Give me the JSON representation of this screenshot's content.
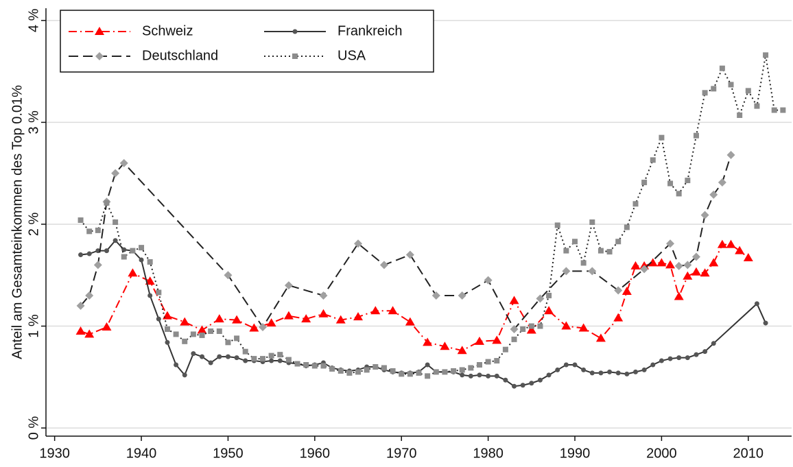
{
  "chart_data": {
    "type": "line",
    "y_label": "Anteil am Gesamteinkommen des Top 0.01%",
    "xlim": [
      1929,
      2015
    ],
    "xticks": [
      1930,
      1940,
      1950,
      1960,
      1970,
      1980,
      1990,
      2000,
      2010
    ],
    "ylim": [
      -0.08,
      4.12
    ],
    "yticks": [
      {
        "value": 0,
        "label": "0 %"
      },
      {
        "value": 1,
        "label": "1 %"
      },
      {
        "value": 2,
        "label": "2 %"
      },
      {
        "value": 3,
        "label": "3 %"
      },
      {
        "value": 4,
        "label": "4 %"
      }
    ],
    "grid": true,
    "legend_position": "top-left",
    "series": [
      {
        "name": "Schweiz",
        "color": "#ff0000",
        "marker_color": "#ff0000",
        "marker": "triangle",
        "line_style": "dashdot",
        "x": [
          1933,
          1934,
          1936,
          1939,
          1941,
          1943,
          1945,
          1947,
          1949,
          1951,
          1953,
          1955,
          1957,
          1959,
          1961,
          1963,
          1965,
          1967,
          1969,
          1971,
          1973,
          1975,
          1977,
          1979,
          1981,
          1983,
          1985,
          1987,
          1989,
          1991,
          1993,
          1995,
          1996,
          1997,
          1998,
          1999,
          2000,
          2001,
          2002,
          2003,
          2004,
          2005,
          2006,
          2007,
          2008,
          2009,
          2010
        ],
        "values": [
          0.95,
          0.92,
          0.99,
          1.52,
          1.44,
          1.1,
          1.04,
          0.96,
          1.07,
          1.06,
          0.98,
          1.03,
          1.1,
          1.07,
          1.12,
          1.06,
          1.09,
          1.15,
          1.15,
          1.04,
          0.84,
          0.8,
          0.76,
          0.85,
          0.86,
          1.25,
          0.96,
          1.15,
          1.0,
          0.98,
          0.88,
          1.08,
          1.34,
          1.59,
          1.59,
          1.62,
          1.62,
          1.6,
          1.29,
          1.49,
          1.53,
          1.52,
          1.62,
          1.8,
          1.8,
          1.74,
          1.67
        ]
      },
      {
        "name": "Frankreich",
        "color": "#333333",
        "marker_color": "#555555",
        "marker": "circle",
        "line_style": "solid",
        "x": [
          1933,
          1934,
          1935,
          1936,
          1937,
          1938,
          1939,
          1940,
          1941,
          1942,
          1943,
          1944,
          1945,
          1946,
          1947,
          1948,
          1949,
          1950,
          1951,
          1952,
          1953,
          1954,
          1955,
          1956,
          1957,
          1958,
          1959,
          1960,
          1961,
          1962,
          1963,
          1964,
          1965,
          1966,
          1967,
          1968,
          1969,
          1970,
          1971,
          1972,
          1973,
          1974,
          1975,
          1976,
          1977,
          1978,
          1979,
          1980,
          1981,
          1982,
          1983,
          1984,
          1985,
          1986,
          1987,
          1988,
          1989,
          1990,
          1991,
          1992,
          1993,
          1994,
          1995,
          1996,
          1997,
          1998,
          1999,
          2000,
          2001,
          2002,
          2003,
          2004,
          2005,
          2006,
          2011,
          2012
        ],
        "values": [
          1.7,
          1.71,
          1.74,
          1.74,
          1.84,
          1.75,
          1.74,
          1.65,
          1.3,
          1.07,
          0.84,
          0.62,
          0.52,
          0.73,
          0.7,
          0.64,
          0.7,
          0.7,
          0.69,
          0.66,
          0.66,
          0.65,
          0.66,
          0.66,
          0.64,
          0.63,
          0.61,
          0.62,
          0.64,
          0.59,
          0.57,
          0.56,
          0.57,
          0.6,
          0.6,
          0.57,
          0.55,
          0.54,
          0.54,
          0.55,
          0.62,
          0.55,
          0.55,
          0.55,
          0.52,
          0.51,
          0.52,
          0.51,
          0.51,
          0.47,
          0.41,
          0.42,
          0.44,
          0.47,
          0.52,
          0.57,
          0.62,
          0.62,
          0.57,
          0.54,
          0.54,
          0.55,
          0.54,
          0.53,
          0.55,
          0.57,
          0.62,
          0.66,
          0.68,
          0.69,
          0.69,
          0.72,
          0.75,
          0.83,
          1.22,
          1.03
        ]
      },
      {
        "name": "Deutschland",
        "color": "#222222",
        "marker_color": "#a0a0a0",
        "marker": "diamond",
        "line_style": "dashed",
        "x": [
          1933,
          1934,
          1935,
          1936,
          1937,
          1938,
          1950,
          1954,
          1957,
          1961,
          1965,
          1968,
          1971,
          1974,
          1977,
          1980,
          1983,
          1986,
          1989,
          1992,
          1995,
          1998,
          2001,
          2002,
          2003,
          2004,
          2005,
          2006,
          2007,
          2008
        ],
        "values": [
          1.2,
          1.3,
          1.6,
          2.22,
          2.5,
          2.6,
          1.5,
          0.99,
          1.4,
          1.3,
          1.81,
          1.6,
          1.7,
          1.3,
          1.3,
          1.45,
          0.97,
          1.27,
          1.54,
          1.54,
          1.35,
          1.56,
          1.81,
          1.59,
          1.6,
          1.68,
          2.09,
          2.29,
          2.41,
          2.68
        ]
      },
      {
        "name": "USA",
        "color": "#222222",
        "marker_color": "#8c8c8c",
        "marker": "square",
        "line_style": "dotted",
        "x": [
          1933,
          1934,
          1935,
          1936,
          1937,
          1938,
          1939,
          1940,
          1941,
          1942,
          1943,
          1944,
          1945,
          1946,
          1947,
          1948,
          1949,
          1950,
          1951,
          1952,
          1953,
          1954,
          1955,
          1956,
          1957,
          1958,
          1959,
          1960,
          1961,
          1962,
          1963,
          1964,
          1965,
          1966,
          1967,
          1968,
          1969,
          1970,
          1971,
          1972,
          1973,
          1974,
          1975,
          1976,
          1977,
          1978,
          1979,
          1980,
          1981,
          1982,
          1983,
          1984,
          1985,
          1986,
          1987,
          1988,
          1989,
          1990,
          1991,
          1992,
          1993,
          1994,
          1995,
          1996,
          1997,
          1998,
          1999,
          2000,
          2001,
          2002,
          2003,
          2004,
          2005,
          2006,
          2007,
          2008,
          2009,
          2010,
          2011,
          2012,
          2013,
          2014
        ],
        "values": [
          2.04,
          1.93,
          1.94,
          2.21,
          2.02,
          1.68,
          1.74,
          1.77,
          1.63,
          1.33,
          0.97,
          0.92,
          0.85,
          0.92,
          0.91,
          0.95,
          0.95,
          0.84,
          0.88,
          0.75,
          0.68,
          0.68,
          0.71,
          0.72,
          0.67,
          0.63,
          0.62,
          0.61,
          0.61,
          0.58,
          0.56,
          0.54,
          0.55,
          0.57,
          0.6,
          0.59,
          0.56,
          0.53,
          0.53,
          0.54,
          0.51,
          0.55,
          0.55,
          0.56,
          0.57,
          0.59,
          0.62,
          0.65,
          0.66,
          0.77,
          0.87,
          0.97,
          1.0,
          1.0,
          1.3,
          1.99,
          1.74,
          1.83,
          1.62,
          2.02,
          1.74,
          1.73,
          1.83,
          1.97,
          2.2,
          2.41,
          2.63,
          2.85,
          2.4,
          2.3,
          2.43,
          2.87,
          3.29,
          3.33,
          3.53,
          3.37,
          3.07,
          3.31,
          3.16,
          3.66,
          3.12,
          3.12
        ]
      }
    ]
  }
}
